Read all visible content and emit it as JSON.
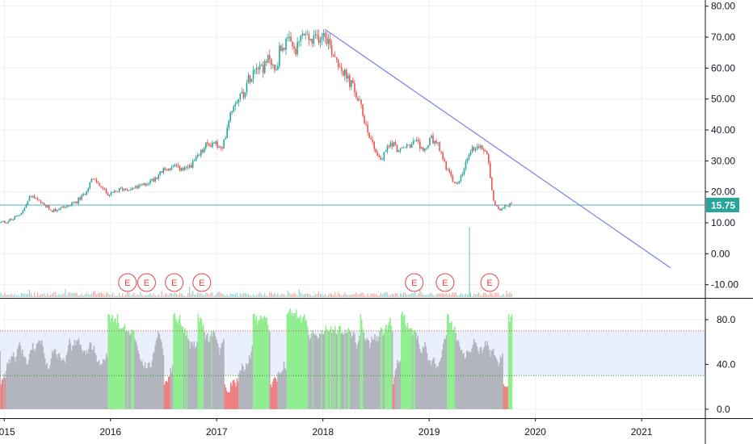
{
  "chart_data": [
    {
      "type": "candlestick",
      "title": "",
      "xlim": [
        2014.96,
        2021.6
      ],
      "ylim": [
        -14,
        82
      ],
      "y_ticks": [
        "80.00",
        "70.00",
        "60.00",
        "50.00",
        "40.00",
        "30.00",
        "20.00",
        "10.00",
        "0.00",
        "-10.00"
      ],
      "y_tick_values": [
        80,
        70,
        60,
        50,
        40,
        30,
        20,
        10,
        0,
        -10
      ],
      "x_tick_values": [
        2015,
        2016,
        2017,
        2018,
        2019,
        2020,
        2021
      ],
      "x_ticks": [
        "2015",
        "2016",
        "2017",
        "2018",
        "2019",
        "2020",
        "2021"
      ],
      "price_series": {
        "x": [
          2014.96,
          2015.08,
          2015.18,
          2015.25,
          2015.35,
          2015.45,
          2015.55,
          2015.65,
          2015.75,
          2015.82,
          2015.88,
          2015.95,
          2016.0,
          2016.1,
          2016.2,
          2016.3,
          2016.4,
          2016.5,
          2016.6,
          2016.7,
          2016.8,
          2016.9,
          2016.98,
          2017.05,
          2017.12,
          2017.18,
          2017.25,
          2017.32,
          2017.38,
          2017.45,
          2017.5,
          2017.55,
          2017.6,
          2017.68,
          2017.75,
          2017.8,
          2017.85,
          2017.9,
          2017.95,
          2018.02,
          2018.08,
          2018.15,
          2018.2,
          2018.28,
          2018.35,
          2018.42,
          2018.5,
          2018.55,
          2018.6,
          2018.65,
          2018.72,
          2018.8,
          2018.88,
          2018.95,
          2019.02,
          2019.08,
          2019.15,
          2019.2,
          2019.25,
          2019.32,
          2019.38,
          2019.45,
          2019.5,
          2019.55,
          2019.6,
          2019.62,
          2019.68,
          2019.72,
          2019.78
        ],
        "y": [
          10,
          11,
          14,
          19,
          16,
          14,
          15,
          16,
          19,
          24,
          23,
          20,
          19,
          21,
          21,
          22,
          24,
          27,
          28,
          27,
          30,
          35,
          36,
          33,
          45,
          50,
          52,
          58,
          62,
          60,
          64,
          58,
          67,
          68,
          65,
          71,
          70,
          68,
          70,
          72,
          66,
          62,
          58,
          54,
          48,
          40,
          33,
          30,
          34,
          36,
          33,
          35,
          36,
          33,
          37,
          35,
          29,
          25,
          22,
          26,
          33,
          35,
          34,
          33,
          18,
          16,
          14,
          16,
          16
        ]
      },
      "last_price": 15.75,
      "last_price_label": "15.75",
      "trendline": {
        "x": [
          2018.02,
          2021.27
        ],
        "y": [
          72.5,
          -4.5
        ]
      },
      "earnings_label": "E",
      "earnings_x": [
        2016.16,
        2016.34,
        2016.6,
        2016.86,
        2018.86,
        2019.15,
        2019.57
      ],
      "volume_spike": {
        "x": 2019.38,
        "relative_height": 0.88
      },
      "colors": {
        "up": "#26a69a",
        "down": "#ef5350",
        "trendline": "#7b7fe8",
        "last_price": "#26a69a",
        "earnings": "#e0454b"
      }
    },
    {
      "type": "area",
      "title": "",
      "ylim": [
        -8,
        98
      ],
      "y_ticks": [
        "80.0",
        "40.0",
        "0.0"
      ],
      "y_tick_values": [
        80,
        40,
        0
      ],
      "band": {
        "upper": 70,
        "lower": 30
      },
      "series_x_range": [
        2014.96,
        2019.78
      ],
      "colors": {
        "area": "#b2b5be",
        "overbought": "#90ee90",
        "oversold": "#f08080",
        "band": "#dfe9fb",
        "band_line": "#d05050"
      }
    }
  ]
}
